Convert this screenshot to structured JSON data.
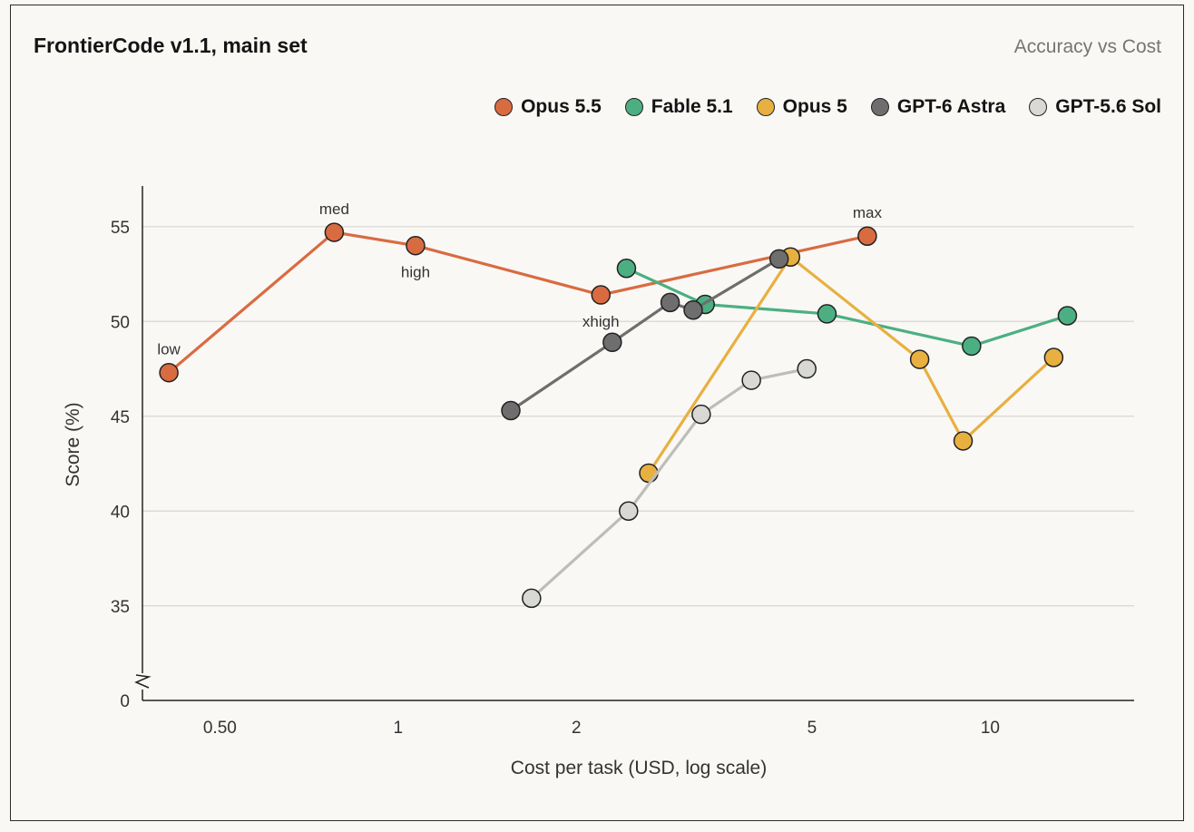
{
  "chart_data": {
    "type": "line",
    "title": "FrontierCode v1.1, main set",
    "subtitle": "Accuracy vs Cost",
    "xlabel": "Cost per task (USD, log scale)",
    "ylabel": "Score (%)",
    "x_scale": "log",
    "xlim": [
      0.37,
      17.5
    ],
    "ylim": [
      32.5,
      57
    ],
    "y_axis_break": true,
    "y_ticks": [
      35,
      40,
      45,
      50,
      55
    ],
    "y_zero_label": "0",
    "x_ticks": [
      {
        "value": 0.5,
        "label": "0.50"
      },
      {
        "value": 1,
        "label": "1"
      },
      {
        "value": 2,
        "label": "2"
      },
      {
        "value": 5,
        "label": "5"
      },
      {
        "value": 10,
        "label": "10"
      }
    ],
    "grid": "horizontal",
    "legend_position": "top-right",
    "series": [
      {
        "name": "Opus 5.5",
        "color": "#d96b41",
        "points": [
          {
            "x": 0.41,
            "y": 47.3,
            "label": "low",
            "label_pos": "above"
          },
          {
            "x": 0.78,
            "y": 54.7,
            "label": "med",
            "label_pos": "above"
          },
          {
            "x": 1.07,
            "y": 54.0,
            "label": "high",
            "label_pos": "below"
          },
          {
            "x": 2.2,
            "y": 51.4,
            "label": "xhigh",
            "label_pos": "below"
          },
          {
            "x": 6.2,
            "y": 54.5,
            "label": "max",
            "label_pos": "above"
          }
        ]
      },
      {
        "name": "Fable 5.1",
        "color": "#4caf82",
        "points": [
          {
            "x": 2.43,
            "y": 52.8
          },
          {
            "x": 3.3,
            "y": 50.9
          },
          {
            "x": 5.3,
            "y": 50.4
          },
          {
            "x": 9.3,
            "y": 48.7
          },
          {
            "x": 13.5,
            "y": 50.3
          }
        ]
      },
      {
        "name": "Opus 5",
        "color": "#e8b040",
        "points": [
          {
            "x": 2.65,
            "y": 42.0
          },
          {
            "x": 4.6,
            "y": 53.4
          },
          {
            "x": 7.6,
            "y": 48.0
          },
          {
            "x": 9.0,
            "y": 43.7
          },
          {
            "x": 12.8,
            "y": 48.1
          }
        ]
      },
      {
        "name": "GPT-6 Astra",
        "color": "#6e6e6e",
        "points": [
          {
            "x": 1.55,
            "y": 45.3
          },
          {
            "x": 2.3,
            "y": 48.9
          },
          {
            "x": 2.88,
            "y": 51.0
          },
          {
            "x": 3.15,
            "y": 50.6
          },
          {
            "x": 4.4,
            "y": 53.3
          }
        ]
      },
      {
        "name": "GPT-5.6 Sol",
        "color": "#d8d8d4",
        "line_color": "#bdbdb9",
        "points": [
          {
            "x": 1.68,
            "y": 35.4
          },
          {
            "x": 2.45,
            "y": 40.0
          },
          {
            "x": 3.25,
            "y": 45.1
          },
          {
            "x": 3.95,
            "y": 46.9
          },
          {
            "x": 4.9,
            "y": 47.5
          }
        ]
      }
    ]
  }
}
